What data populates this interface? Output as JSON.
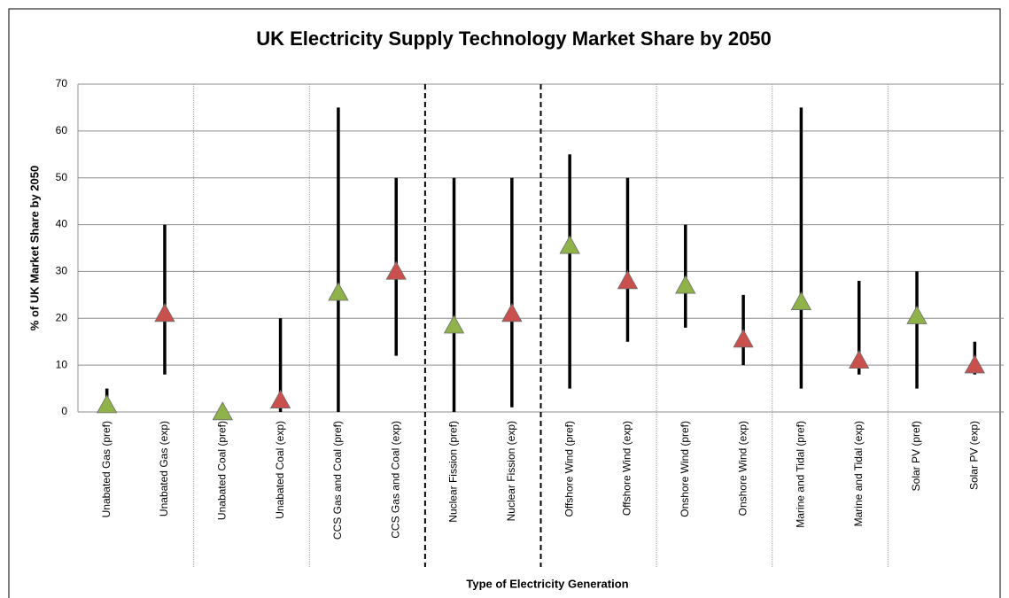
{
  "chart_data": {
    "type": "range",
    "title": "UK Electricity Supply Technology Market Share by 2050",
    "x_label": "Type of Electricity Generation",
    "y_label": "% of UK Market Share by 2050",
    "categories": [
      "Unabated Gas (pref)",
      "Unabated Gas (exp)",
      "Unabated Coal (pref)",
      "Unabated Coal (exp)",
      "CCS Gas and Coal (pref)",
      "CCS Gas and Coal (exp)",
      "Nuclear Fission (pref)",
      "Nuclear Fission (exp)",
      "Offshore Wind (pref)",
      "Offshore Wind (exp)",
      "Onshore Wind (pref)",
      "Onshore Wind (exp)",
      "Marine and Tidal (pref)",
      "Marine and Tidal (exp)",
      "Solar PV (pref)",
      "Solar PV (exp)"
    ],
    "values": [
      1.5,
      21,
      0,
      2.5,
      25.5,
      30,
      18.5,
      21,
      35.5,
      28,
      27,
      15.5,
      23.5,
      11,
      20.5,
      10
    ],
    "low": [
      0,
      8,
      0,
      0,
      0,
      12,
      0,
      1,
      5,
      15,
      18,
      10,
      5,
      8,
      5,
      8
    ],
    "high": [
      5,
      40,
      0,
      20,
      65,
      50,
      50,
      50,
      55,
      50,
      40,
      25,
      65,
      28,
      30,
      15
    ],
    "colors": [
      "#8fb34a",
      "#c9504d",
      "#8fb34a",
      "#c9504d",
      "#8fb34a",
      "#c9504d",
      "#8fb34a",
      "#c9504d",
      "#8fb34a",
      "#c9504d",
      "#8fb34a",
      "#c9504d",
      "#8fb34a",
      "#c9504d",
      "#8fb34a",
      "#c9504d"
    ],
    "ylim": [
      0,
      70
    ],
    "yticks": [
      0,
      10,
      20,
      30,
      40,
      50,
      60,
      70
    ],
    "grid": true
  }
}
